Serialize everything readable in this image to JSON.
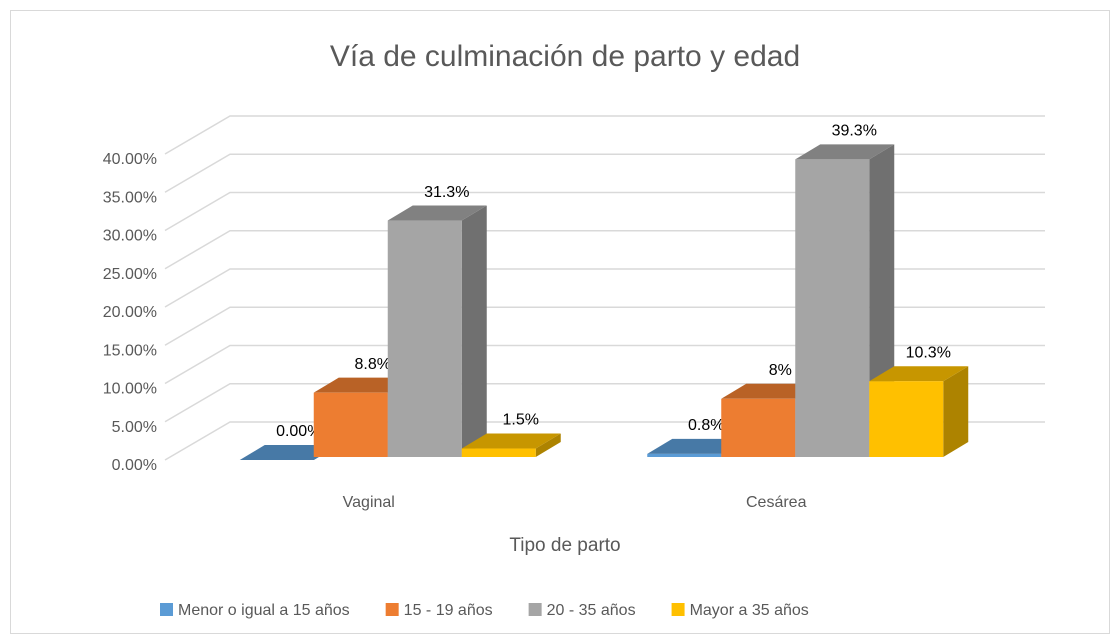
{
  "chart_data": {
    "type": "bar3d",
    "title": "Vía de culminación de parto y edad",
    "x_label": "Tipo de parto",
    "categories": [
      "Vaginal",
      "Cesárea"
    ],
    "series": [
      {
        "name": "Menor o igual a 15 años",
        "color": "#5b9bd5",
        "values": [
          0,
          0.8
        ],
        "value_labels": [
          "0.00%",
          "0.8%"
        ]
      },
      {
        "name": "15 - 19 años",
        "color": "#ed7d31",
        "values": [
          8.8,
          8
        ],
        "value_labels": [
          "8.8%",
          "8%"
        ]
      },
      {
        "name": "20 - 35 años",
        "color": "#a5a5a5",
        "values": [
          31.3,
          39.3
        ],
        "value_labels": [
          "31.3%",
          "39.3%"
        ]
      },
      {
        "name": "Mayor a 35 años",
        "color": "#ffc000",
        "values": [
          1.5,
          10.3
        ],
        "value_labels": [
          "1.5%",
          "10.3%"
        ]
      }
    ],
    "ylim": [
      0,
      40
    ],
    "yticks": [
      {
        "value": 0,
        "label": "0.00%"
      },
      {
        "value": 5,
        "label": "5.00%"
      },
      {
        "value": 10,
        "label": "10.00%"
      },
      {
        "value": 15,
        "label": "15.00%"
      },
      {
        "value": 20,
        "label": "20.00%"
      },
      {
        "value": 25,
        "label": "25.00%"
      },
      {
        "value": 30,
        "label": "30.00%"
      },
      {
        "value": 35,
        "label": "35.00%"
      },
      {
        "value": 40,
        "label": "40.00%"
      }
    ],
    "grid": true,
    "legend": "bottom"
  }
}
